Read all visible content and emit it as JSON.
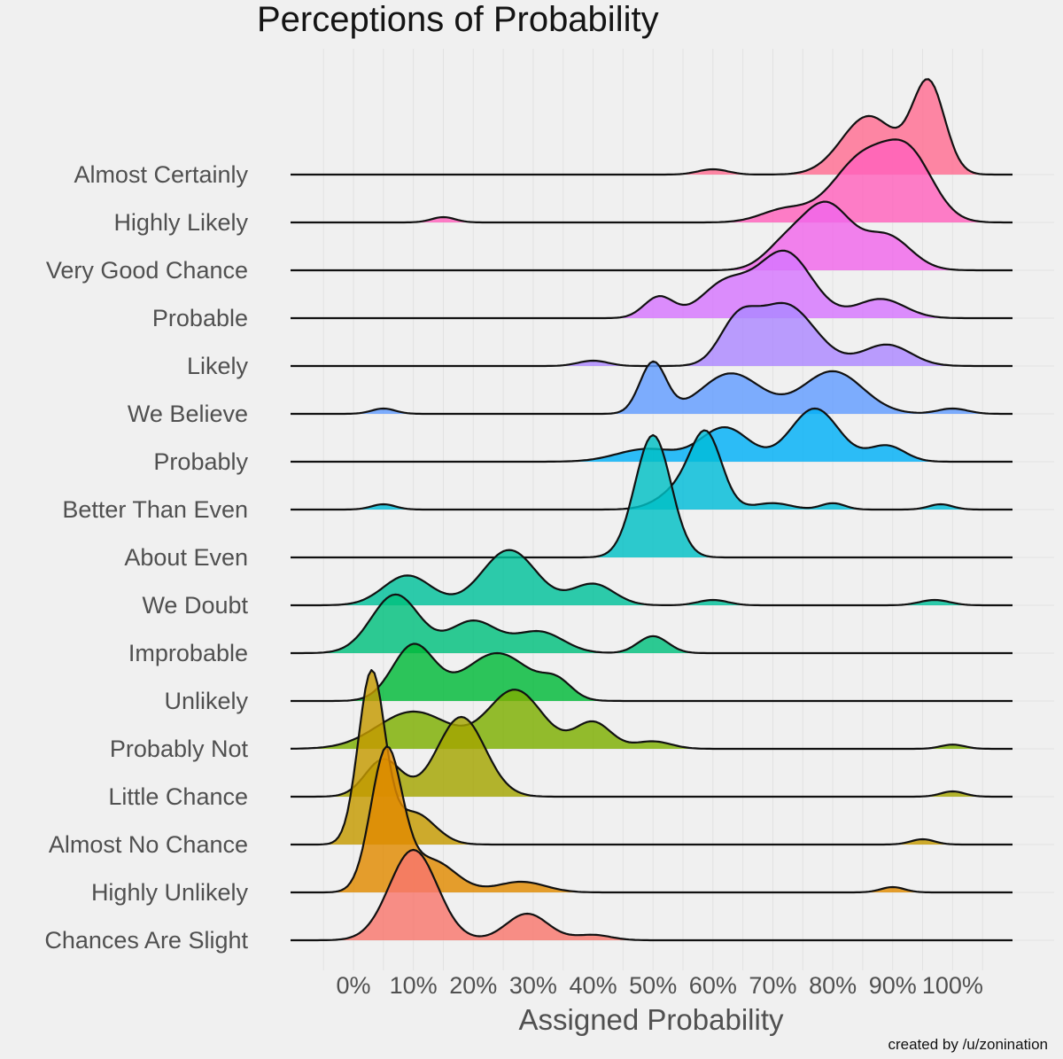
{
  "chart_data": {
    "type": "ridgeline",
    "title": "Perceptions of Probability",
    "xlabel": "Assigned Probability",
    "ylabel": "",
    "credit": "created by /u/zonination",
    "x_ticks": [
      {
        "value": 0,
        "label": "0%"
      },
      {
        "value": 10,
        "label": "10%"
      },
      {
        "value": 20,
        "label": "20%"
      },
      {
        "value": 30,
        "label": "30%"
      },
      {
        "value": 40,
        "label": "40%"
      },
      {
        "value": 50,
        "label": "50%"
      },
      {
        "value": 60,
        "label": "60%"
      },
      {
        "value": 70,
        "label": "70%"
      },
      {
        "value": 80,
        "label": "80%"
      },
      {
        "value": 90,
        "label": "90%"
      },
      {
        "value": 100,
        "label": "100%"
      }
    ],
    "xlim": [
      -10.5,
      110
    ],
    "grid": true,
    "series": [
      {
        "name": "Almost Certainly",
        "color": "#FF6C91",
        "components": [
          [
            60,
            2.5,
            0.05
          ],
          [
            86,
            4.5,
            0.55
          ],
          [
            96,
            2.7,
            0.85
          ]
        ]
      },
      {
        "name": "Highly Likely",
        "color": "#FF62BC",
        "components": [
          [
            15,
            2,
            0.05
          ],
          [
            72,
            4,
            0.12
          ],
          [
            85,
            5,
            0.6
          ],
          [
            93,
            4,
            0.55
          ]
        ]
      },
      {
        "name": "Very Good Chance",
        "color": "#F066EA",
        "components": [
          [
            72,
            3.5,
            0.22
          ],
          [
            79,
            4,
            0.6
          ],
          [
            89,
            4,
            0.32
          ]
        ]
      },
      {
        "name": "Probable",
        "color": "#D575FE",
        "components": [
          [
            51,
            2.5,
            0.2
          ],
          [
            62,
            4,
            0.32
          ],
          [
            72,
            4.5,
            0.62
          ],
          [
            88,
            4,
            0.18
          ]
        ]
      },
      {
        "name": "Likely",
        "color": "#AC88FF",
        "components": [
          [
            40,
            2.5,
            0.05
          ],
          [
            64,
            3,
            0.35
          ],
          [
            72,
            5,
            0.58
          ],
          [
            89,
            4,
            0.2
          ]
        ]
      },
      {
        "name": "We Believe",
        "color": "#619CFF",
        "components": [
          [
            5,
            2,
            0.05
          ],
          [
            50,
            2.2,
            0.48
          ],
          [
            63,
            5,
            0.38
          ],
          [
            80,
            5,
            0.4
          ],
          [
            100,
            2.5,
            0.05
          ]
        ]
      },
      {
        "name": "Probably",
        "color": "#00B0F6",
        "components": [
          [
            49,
            5,
            0.12
          ],
          [
            62,
            4,
            0.32
          ],
          [
            77,
            4,
            0.5
          ],
          [
            89,
            3,
            0.15
          ]
        ]
      },
      {
        "name": "Better Than Even",
        "color": "#00BCD8",
        "components": [
          [
            5,
            2,
            0.05
          ],
          [
            59,
            2.5,
            0.55
          ],
          [
            56,
            4,
            0.25
          ],
          [
            70,
            3,
            0.06
          ],
          [
            80,
            2,
            0.06
          ],
          [
            98,
            2,
            0.05
          ]
        ]
      },
      {
        "name": "About Even",
        "color": "#00BFC4",
        "components": [
          [
            50,
            3,
            1.15
          ]
        ]
      },
      {
        "name": "We Doubt",
        "color": "#00C19A",
        "components": [
          [
            9,
            4,
            0.28
          ],
          [
            26,
            4.5,
            0.52
          ],
          [
            40,
            3.5,
            0.2
          ],
          [
            60,
            2.5,
            0.05
          ],
          [
            97,
            2.5,
            0.05
          ]
        ]
      },
      {
        "name": "Improbable",
        "color": "#00BF7D",
        "components": [
          [
            7,
            4,
            0.55
          ],
          [
            20,
            4,
            0.3
          ],
          [
            31,
            4,
            0.2
          ],
          [
            50,
            2.5,
            0.16
          ]
        ]
      },
      {
        "name": "Unlikely",
        "color": "#00BA38",
        "components": [
          [
            10,
            3.5,
            0.52
          ],
          [
            24,
            5.5,
            0.45
          ],
          [
            34,
            2.5,
            0.15
          ]
        ]
      },
      {
        "name": "Probably Not",
        "color": "#7CAE00",
        "components": [
          [
            10,
            6,
            0.35
          ],
          [
            27,
            4.5,
            0.55
          ],
          [
            40,
            3,
            0.25
          ],
          [
            50,
            3,
            0.07
          ],
          [
            100,
            2,
            0.04
          ]
        ]
      },
      {
        "name": "Little Chance",
        "color": "#A3A500",
        "components": [
          [
            5,
            3,
            0.35
          ],
          [
            18,
            4,
            0.75
          ],
          [
            100,
            2,
            0.05
          ]
        ]
      },
      {
        "name": "Almost No Chance",
        "color": "#C49A00",
        "components": [
          [
            3,
            2.2,
            1.6
          ],
          [
            10,
            3.5,
            0.3
          ],
          [
            95,
            2,
            0.05
          ]
        ]
      },
      {
        "name": "Highly Unlikely",
        "color": "#E08A00",
        "components": [
          [
            5.5,
            2.6,
            1.32
          ],
          [
            13,
            4,
            0.3
          ],
          [
            28,
            4,
            0.1
          ],
          [
            90,
            2,
            0.05
          ]
        ]
      },
      {
        "name": "Chances Are Slight",
        "color": "#F8766D",
        "components": [
          [
            10,
            4,
            0.85
          ],
          [
            29,
            3.5,
            0.25
          ],
          [
            40,
            3,
            0.05
          ]
        ]
      }
    ]
  }
}
